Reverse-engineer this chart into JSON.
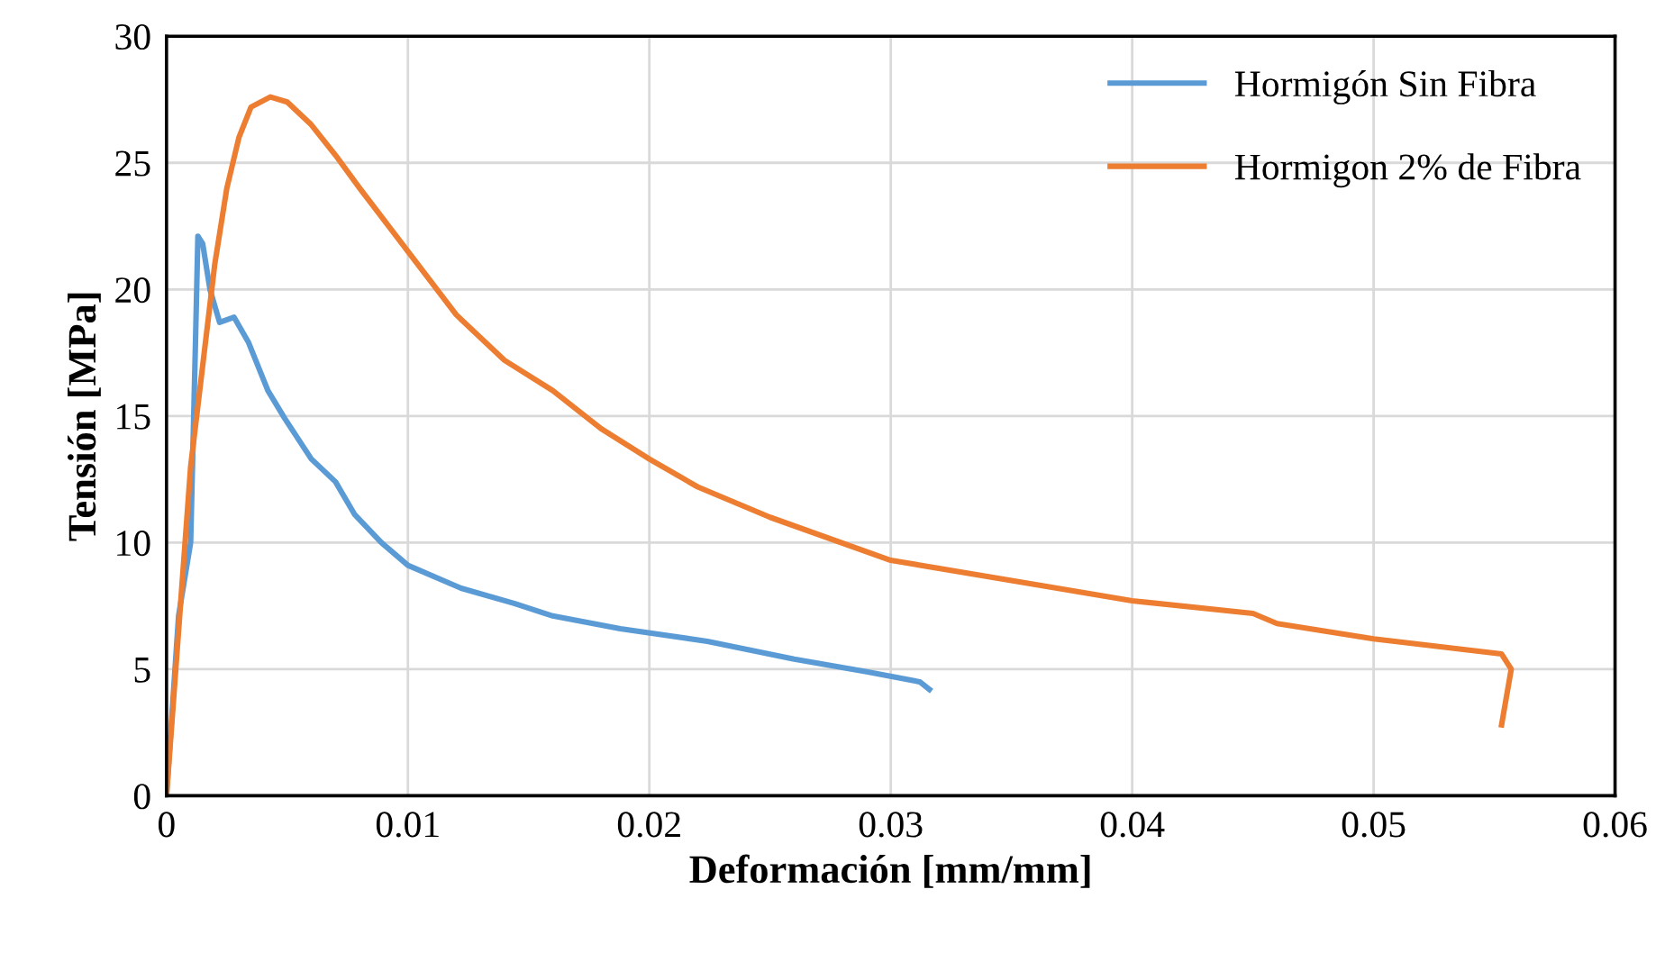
{
  "chart_data": {
    "type": "line",
    "xlabel": "Deformación [mm/mm]",
    "ylabel": "Tensión [MPa]",
    "xlim": [
      0,
      0.06
    ],
    "xticks": [
      0,
      0.01,
      0.02,
      0.03,
      0.04,
      0.05,
      0.06
    ],
    "ylim": [
      0,
      30
    ],
    "yticks": [
      0,
      5,
      10,
      15,
      20,
      25,
      30
    ],
    "grid": true,
    "legend": "top right",
    "marker": "none",
    "line_style": "solid",
    "series": [
      {
        "name": "Hormigón Sin Fibra",
        "color": "#5b9bd5",
        "x": [
          0,
          0.0005,
          0.001,
          0.0012,
          0.0013,
          0.0015,
          0.0018,
          0.0022,
          0.0028,
          0.0034,
          0.0042,
          0.0049,
          0.006,
          0.007,
          0.0078,
          0.0089,
          0.01,
          0.0122,
          0.0144,
          0.016,
          0.0188,
          0.0224,
          0.026,
          0.029,
          0.0312,
          0.0316
        ],
        "values": [
          0,
          7.1,
          10,
          17.9,
          22.1,
          21.8,
          20,
          18.7,
          18.9,
          17.9,
          16,
          14.9,
          13.3,
          12.4,
          11.1,
          10,
          9.1,
          8.2,
          7.6,
          7.1,
          6.6,
          6.1,
          5.4,
          4.9,
          4.5,
          4.2
        ]
      },
      {
        "name": "Hormigon 2% de Fibra",
        "color": "#ed7d31",
        "x": [
          0,
          0.001,
          0.002,
          0.0025,
          0.003,
          0.0035,
          0.0043,
          0.005,
          0.006,
          0.007,
          0.008,
          0.01,
          0.012,
          0.014,
          0.016,
          0.018,
          0.02,
          0.022,
          0.025,
          0.03,
          0.035,
          0.04,
          0.045,
          0.046,
          0.05,
          0.0553,
          0.0557,
          0.0553
        ],
        "values": [
          0,
          13,
          21,
          24,
          26,
          27.2,
          27.6,
          27.4,
          26.5,
          25.3,
          24,
          21.5,
          19,
          17.2,
          16,
          14.5,
          13.3,
          12.2,
          11,
          9.3,
          8.5,
          7.7,
          7.2,
          6.8,
          6.2,
          5.6,
          5,
          2.8
        ]
      }
    ]
  }
}
